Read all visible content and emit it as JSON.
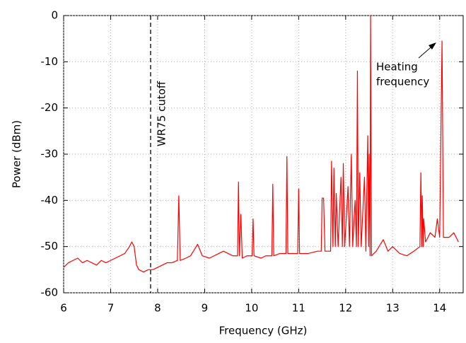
{
  "chart_data": {
    "type": "line",
    "xlabel": "Frequency (GHz)",
    "ylabel": "Power (dBm)",
    "color": "#ff0000",
    "xlim": [
      6,
      14.5
    ],
    "ylim": [
      -60,
      0
    ],
    "xticks": [
      6,
      7,
      8,
      9,
      10,
      11,
      12,
      13,
      14
    ],
    "yticks": [
      -60,
      -50,
      -40,
      -30,
      -20,
      -10,
      0
    ],
    "grid": true,
    "vlines": [
      {
        "x": 7.85,
        "label": "WR75 cutoff",
        "style": "dashed"
      }
    ],
    "annotations": [
      {
        "text": [
          "Heating",
          "frequency"
        ]
      }
    ],
    "x": [
      6.0,
      6.1,
      6.2,
      6.3,
      6.4,
      6.5,
      6.6,
      6.7,
      6.8,
      6.9,
      7.0,
      7.1,
      7.2,
      7.3,
      7.4,
      7.45,
      7.5,
      7.55,
      7.6,
      7.7,
      7.8,
      7.9,
      8.0,
      8.1,
      8.2,
      8.3,
      8.42,
      8.45,
      8.48,
      8.6,
      8.7,
      8.85,
      8.95,
      9.1,
      9.2,
      9.3,
      9.4,
      9.5,
      9.6,
      9.7,
      9.72,
      9.74,
      9.77,
      9.8,
      9.9,
      10.01,
      10.03,
      10.05,
      10.2,
      10.3,
      10.43,
      10.45,
      10.47,
      10.6,
      10.73,
      10.75,
      10.77,
      10.9,
      10.98,
      11.0,
      11.02,
      11.2,
      11.4,
      11.48,
      11.5,
      11.53,
      11.56,
      11.68,
      11.7,
      11.73,
      11.75,
      11.78,
      11.8,
      11.84,
      11.9,
      11.93,
      11.95,
      11.98,
      12.05,
      12.08,
      12.12,
      12.15,
      12.2,
      12.23,
      12.25,
      12.27,
      12.3,
      12.33,
      12.4,
      12.43,
      12.47,
      12.49,
      12.5,
      12.52,
      12.53,
      12.55,
      12.65,
      12.8,
      12.9,
      13.0,
      13.15,
      13.3,
      13.45,
      13.58,
      13.6,
      13.62,
      13.63,
      13.65,
      13.66,
      13.7,
      13.8,
      13.9,
      13.95,
      14.0,
      14.05,
      14.08,
      14.2,
      14.3,
      14.4
    ],
    "values": [
      -54.5,
      -53.5,
      -53,
      -52.5,
      -53.5,
      -53,
      -53.5,
      -54,
      -53,
      -53.5,
      -53,
      -52.5,
      -52,
      -51.5,
      -50,
      -49,
      -50,
      -54,
      -55,
      -55.5,
      -55,
      -55,
      -54.5,
      -54,
      -53.5,
      -53.5,
      -53,
      -39,
      -53,
      -52.5,
      -52,
      -49.5,
      -52,
      -52.5,
      -52,
      -51.5,
      -51,
      -51.5,
      -52,
      -52,
      -36,
      -52,
      -43,
      -52.5,
      -52,
      -52,
      -44,
      -52,
      -52.5,
      -52,
      -52,
      -36.5,
      -52,
      -51.5,
      -51.5,
      -30.5,
      -51.5,
      -51.5,
      -51.5,
      -37.5,
      -51.5,
      -51.5,
      -51,
      -51,
      -39.5,
      -39.5,
      -51,
      -51,
      -31.5,
      -50,
      -33,
      -50,
      -38.5,
      -50,
      -35,
      -50,
      -32,
      -50,
      -37,
      -50,
      -30,
      -50,
      -40,
      -50,
      -12,
      -50,
      -34,
      -50,
      -35,
      -51,
      -26,
      -50,
      -30,
      -52,
      0,
      -52,
      -51,
      -48.5,
      -51,
      -50,
      -51.5,
      -52,
      -51,
      -50,
      -34,
      -50,
      -39,
      -50,
      -44,
      -49,
      -47,
      -48,
      -44,
      -48,
      -5.5,
      -48,
      -48,
      -47,
      -49
    ]
  }
}
